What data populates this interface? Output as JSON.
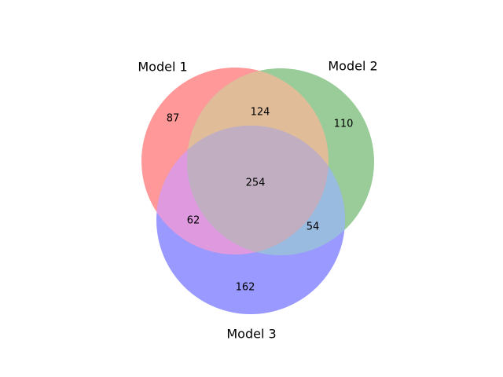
{
  "chart_data": {
    "type": "venn",
    "sets": [
      {
        "name": "Model 1",
        "color": "#ff9999"
      },
      {
        "name": "Model 2",
        "color": "#99cc99"
      },
      {
        "name": "Model 3",
        "color": "#9999ff"
      }
    ],
    "regions": {
      "only_model_1": "87",
      "only_model_2": "110",
      "only_model_3": "162",
      "model_1_and_2": "124",
      "model_1_and_3": "62",
      "model_2_and_3": "54",
      "all_three": "254"
    }
  }
}
